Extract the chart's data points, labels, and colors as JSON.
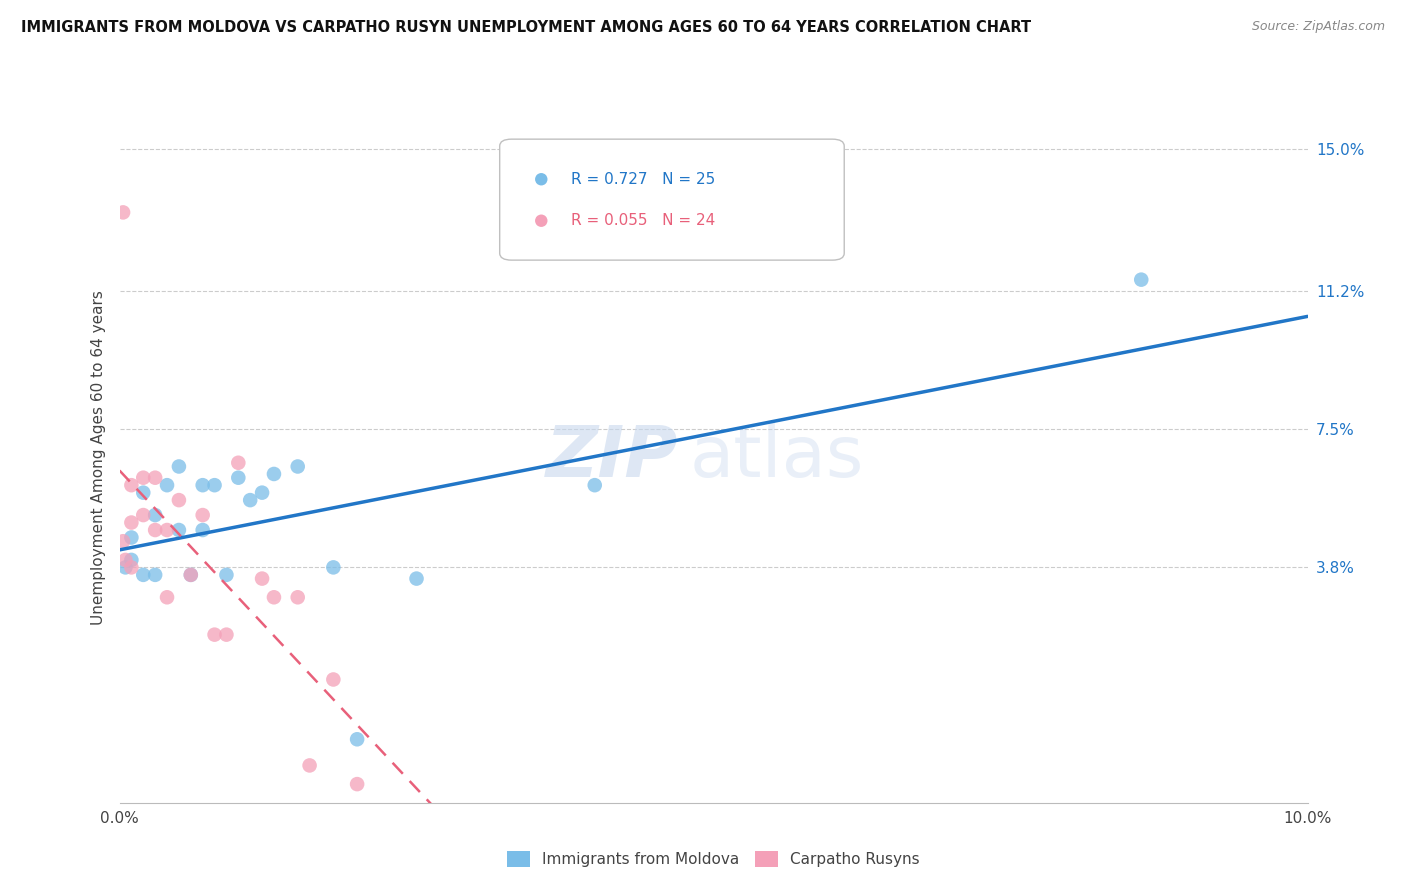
{
  "title": "IMMIGRANTS FROM MOLDOVA VS CARPATHO RUSYN UNEMPLOYMENT AMONG AGES 60 TO 64 YEARS CORRELATION CHART",
  "source": "Source: ZipAtlas.com",
  "ylabel": "Unemployment Among Ages 60 to 64 years",
  "xlim": [
    0.0,
    0.1
  ],
  "ylim": [
    -0.025,
    0.16
  ],
  "yticks_right": [
    0.038,
    0.075,
    0.112,
    0.15
  ],
  "ytick_right_labels": [
    "3.8%",
    "7.5%",
    "11.2%",
    "15.0%"
  ],
  "blue_R": 0.727,
  "blue_N": 25,
  "pink_R": 0.055,
  "pink_N": 24,
  "blue_color": "#7abde8",
  "pink_color": "#f4a0b8",
  "blue_line_color": "#2176c7",
  "pink_line_color": "#e8607a",
  "legend_blue_label": "Immigrants from Moldova",
  "legend_pink_label": "Carpatho Rusyns",
  "watermark_zip": "ZIP",
  "watermark_atlas": "atlas",
  "blue_x": [
    0.0005,
    0.001,
    0.001,
    0.002,
    0.002,
    0.003,
    0.003,
    0.004,
    0.005,
    0.005,
    0.006,
    0.007,
    0.007,
    0.008,
    0.009,
    0.01,
    0.011,
    0.012,
    0.013,
    0.015,
    0.018,
    0.02,
    0.025,
    0.04,
    0.086
  ],
  "blue_y": [
    0.038,
    0.046,
    0.04,
    0.058,
    0.036,
    0.052,
    0.036,
    0.06,
    0.065,
    0.048,
    0.036,
    0.06,
    0.048,
    0.06,
    0.036,
    0.062,
    0.056,
    0.058,
    0.063,
    0.065,
    0.038,
    -0.008,
    0.035,
    0.06,
    0.115
  ],
  "pink_x": [
    0.0003,
    0.0005,
    0.001,
    0.001,
    0.001,
    0.002,
    0.002,
    0.003,
    0.003,
    0.004,
    0.004,
    0.005,
    0.006,
    0.007,
    0.008,
    0.009,
    0.01,
    0.012,
    0.013,
    0.015,
    0.016,
    0.018,
    0.02,
    0.0003
  ],
  "pink_y": [
    0.045,
    0.04,
    0.06,
    0.05,
    0.038,
    0.062,
    0.052,
    0.062,
    0.048,
    0.048,
    0.03,
    0.056,
    0.036,
    0.052,
    0.02,
    0.02,
    0.066,
    0.035,
    0.03,
    0.03,
    -0.015,
    0.008,
    -0.02,
    0.133
  ]
}
